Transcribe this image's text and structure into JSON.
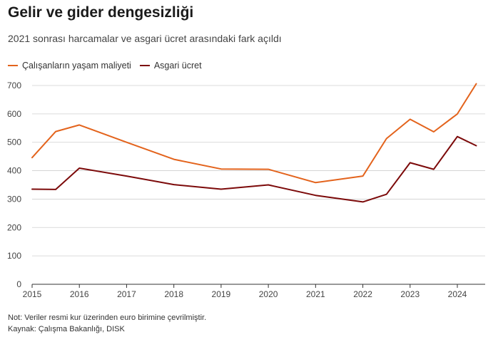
{
  "title": "Gelir ve gider dengesizliği",
  "subtitle": "2021 sonrası harcamalar ve asgari ücret arasındaki fark açıldı",
  "note": "Not: Veriler resmi kur üzerinden euro birimine çevrilmiştir.",
  "source": "Kaynak: Çalışma Bakanlığı, DISK",
  "chart_data": {
    "type": "line",
    "title": "Gelir ve gider dengesizliği",
    "subtitle": "2021 sonrası harcamalar ve asgari ücret arasındaki fark açıldı",
    "xlabel": "",
    "ylabel": "",
    "xlim": [
      2015,
      2024.5
    ],
    "ylim": [
      0,
      700
    ],
    "x_ticks": [
      "2015",
      "2016",
      "2017",
      "2018",
      "2019",
      "2020",
      "2021",
      "2022",
      "2023",
      "2024"
    ],
    "y_ticks": [
      "0",
      "100",
      "200",
      "300",
      "400",
      "500",
      "600",
      "700"
    ],
    "grid": true,
    "legend_position": "top-left",
    "series": [
      {
        "name": "Çalışanların yaşam maliyeti",
        "color": "#e3631c",
        "x": [
          2015,
          2015.5,
          2016,
          2017,
          2018,
          2019,
          2020,
          2021,
          2022,
          2022.5,
          2023,
          2023.5,
          2024,
          2024.4
        ],
        "y": [
          446,
          538,
          561,
          500,
          440,
          406,
          405,
          358,
          381,
          513,
          581,
          537,
          600,
          706
        ]
      },
      {
        "name": "Asgari ücret",
        "color": "#7c0a0a",
        "x": [
          2015,
          2015.5,
          2016,
          2017,
          2018,
          2019,
          2020,
          2021,
          2022,
          2022.5,
          2023,
          2023.5,
          2024,
          2024.4
        ],
        "y": [
          335,
          334,
          409,
          381,
          351,
          335,
          350,
          313,
          290,
          317,
          428,
          405,
          520,
          488
        ]
      }
    ]
  }
}
